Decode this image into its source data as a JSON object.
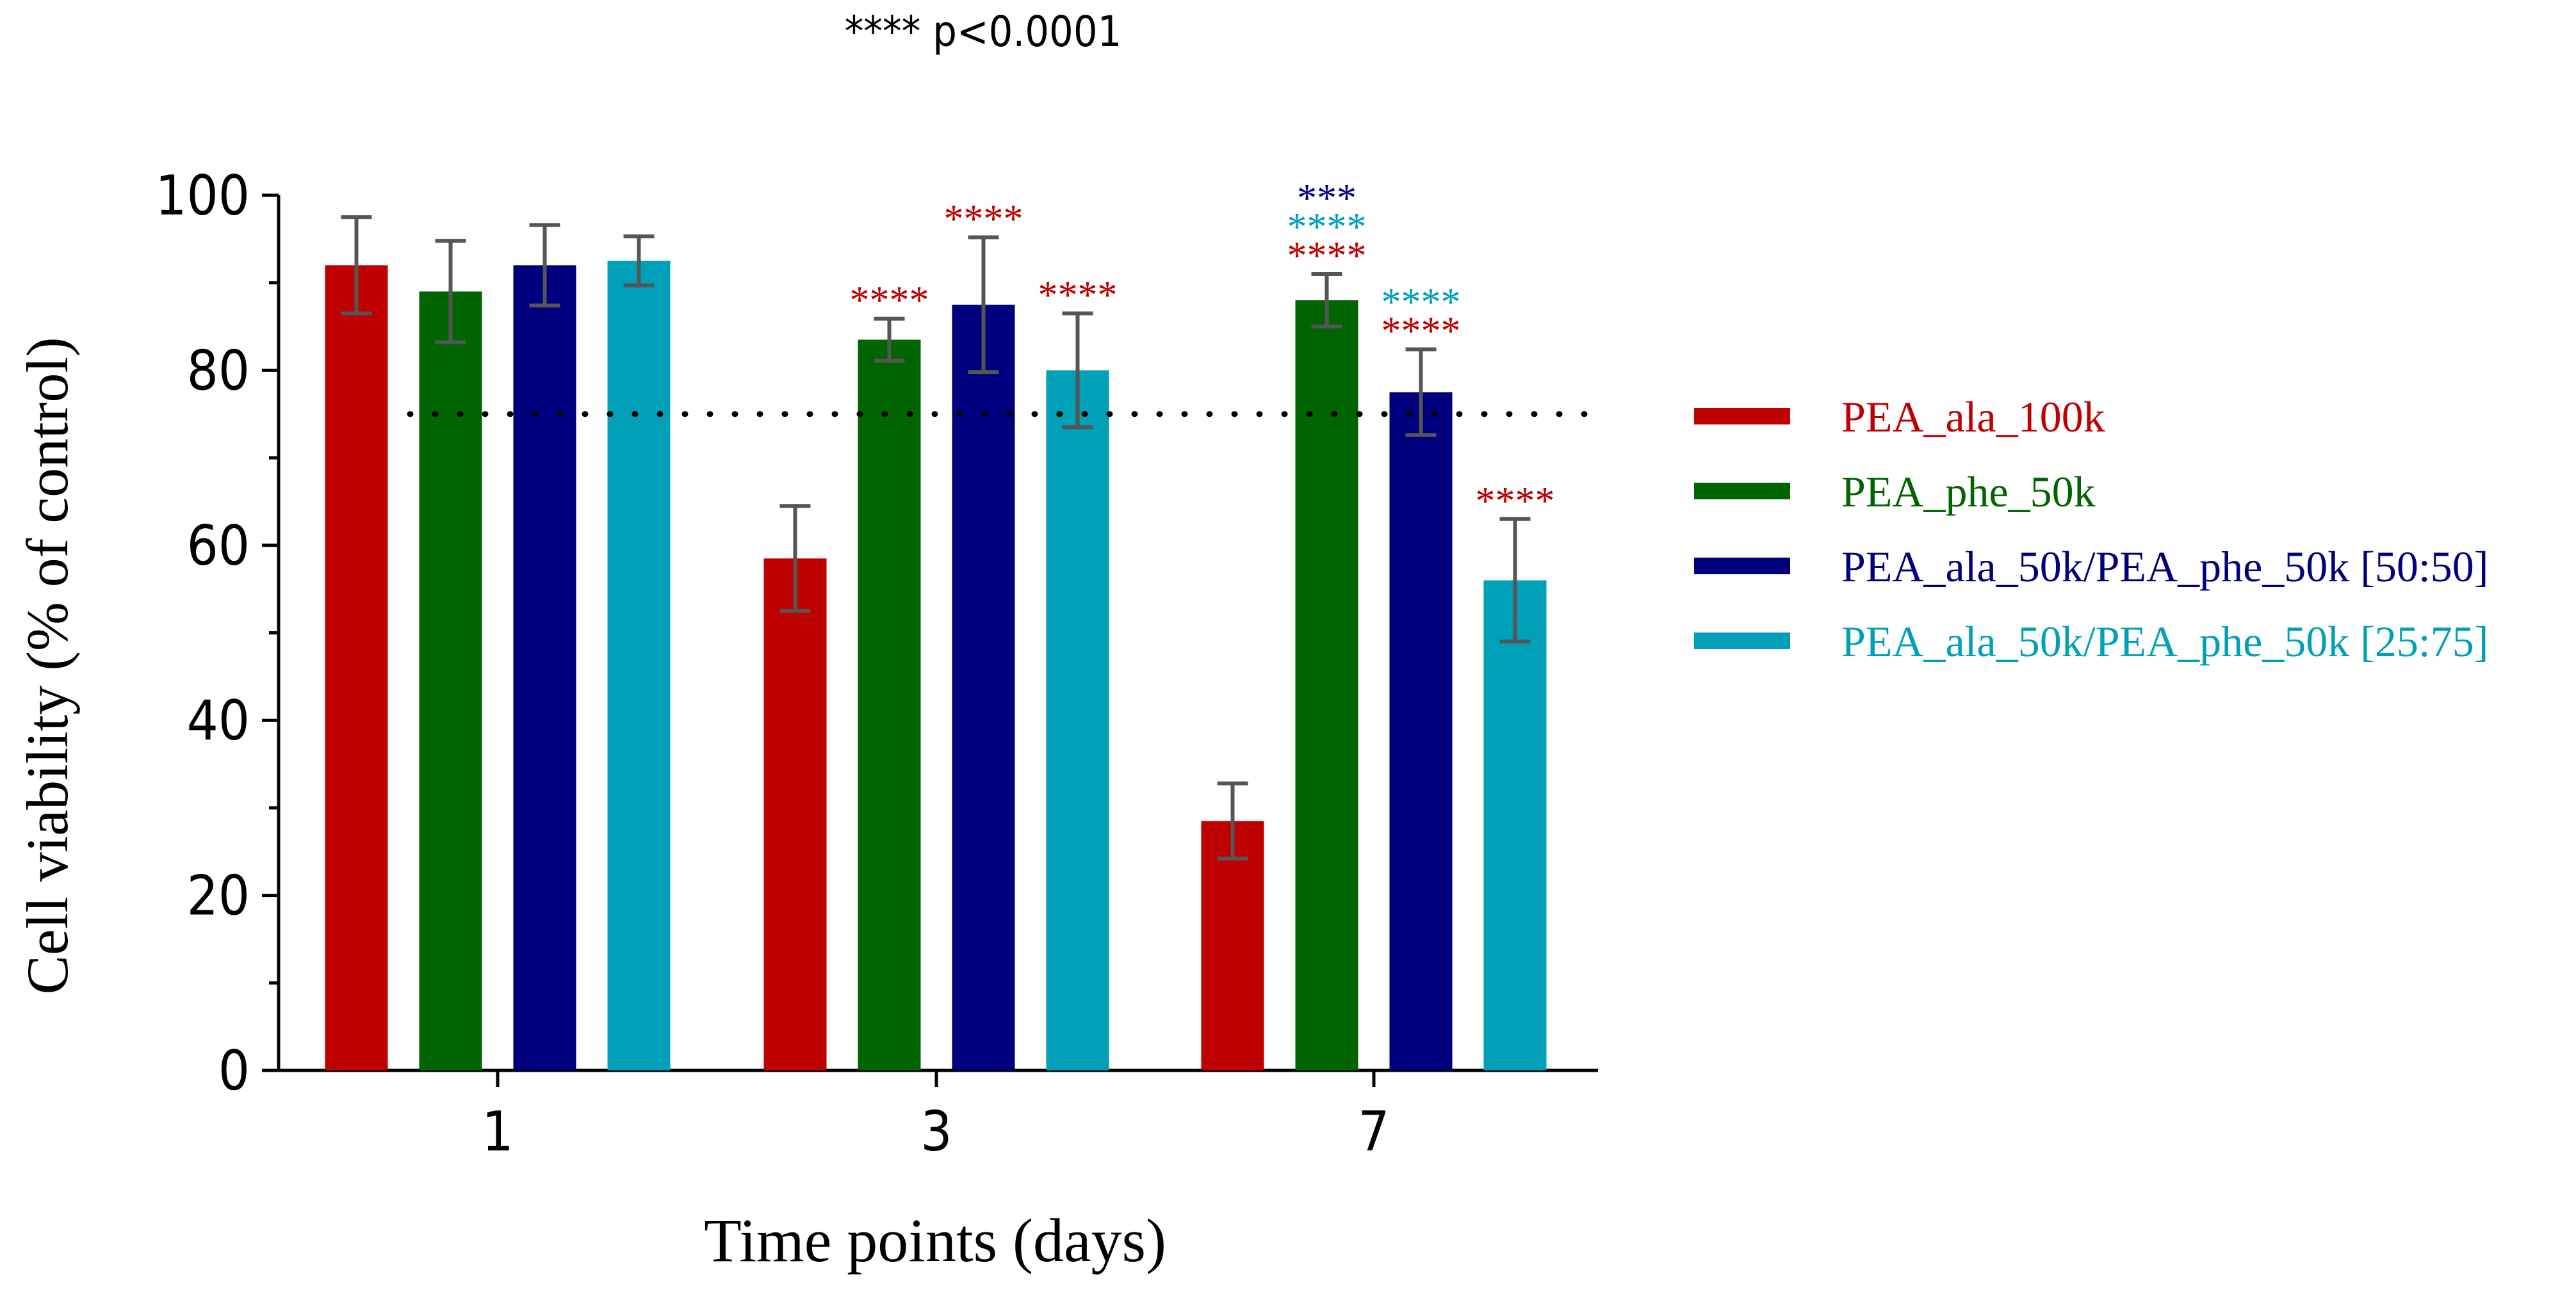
{
  "chart_data": {
    "type": "bar",
    "title": "**** p<0.0001",
    "xlabel": "Time points (days)",
    "ylabel": "Cell viability (% of control)",
    "categories": [
      "1",
      "3",
      "7"
    ],
    "ylim": [
      0,
      100
    ],
    "yticks": [
      "0",
      "20",
      "40",
      "60",
      "80",
      "100"
    ],
    "reference_line": {
      "y": 75,
      "style": "dotted"
    },
    "legend_position": "right",
    "series": [
      {
        "name": "PEA_ala_100k",
        "color": "#bf0000",
        "values": [
          92,
          58.5,
          28.5
        ],
        "errors": [
          5.5,
          6,
          4.3
        ],
        "annotations": [
          [],
          [],
          []
        ]
      },
      {
        "name": "PEA_phe_50k",
        "color": "#006400",
        "values": [
          89,
          83.5,
          88
        ],
        "errors": [
          5.8,
          2.4,
          3
        ],
        "annotations": [
          [],
          [
            {
              "text": "****",
              "color": "#bf0000"
            }
          ],
          [
            {
              "text": "****",
              "color": "#bf0000"
            },
            {
              "text": "****",
              "color": "#00a0b8"
            },
            {
              "text": "***",
              "color": "#00007f"
            }
          ]
        ]
      },
      {
        "name": "PEA_ala_50k/PEA_phe_50k [50:50]",
        "color": "#00007f",
        "values": [
          92,
          87.5,
          77.5
        ],
        "errors": [
          4.6,
          7.7,
          4.9
        ],
        "annotations": [
          [],
          [
            {
              "text": "****",
              "color": "#bf0000"
            }
          ],
          [
            {
              "text": "****",
              "color": "#bf0000"
            },
            {
              "text": "****",
              "color": "#00a0b8"
            }
          ]
        ]
      },
      {
        "name": "PEA_ala_50k/PEA_phe_50k [25:75]",
        "color": "#00a0b8",
        "values": [
          92.5,
          80,
          56
        ],
        "errors": [
          2.8,
          6.5,
          7
        ],
        "annotations": [
          [],
          [
            {
              "text": "****",
              "color": "#bf0000"
            }
          ],
          [
            {
              "text": "****",
              "color": "#bf0000"
            }
          ]
        ]
      }
    ]
  }
}
